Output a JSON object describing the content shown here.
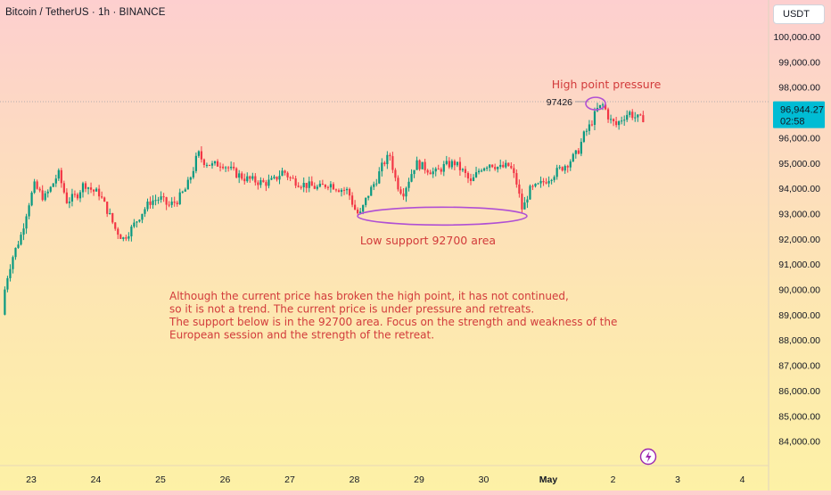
{
  "header": {
    "title": "Bitcoin / TetherUS · 1h · BINANCE"
  },
  "currency_button": {
    "label": "USDT"
  },
  "chart_data": {
    "type": "candlestick",
    "title": "Bitcoin / TetherUS · 1h · BINANCE",
    "x_ticks": [
      "23",
      "24",
      "25",
      "26",
      "27",
      "28",
      "29",
      "30",
      "May",
      "2",
      "3",
      "4"
    ],
    "y_ticks": [
      "100,000.00",
      "99,000.00",
      "98,000.00",
      "97,000.00",
      "96,000.00",
      "95,000.00",
      "94,000.00",
      "93,000.00",
      "92,000.00",
      "91,000.00",
      "90,000.00",
      "89,000.00",
      "88,000.00",
      "87,000.00",
      "86,000.00",
      "85,000.00",
      "84,000.00"
    ],
    "ylim": [
      83300,
      100800
    ],
    "current_price": {
      "value": "96,944.27",
      "countdown": "02:58"
    },
    "recent_high_label": "97426",
    "price_path": [
      [
        22.55,
        89000
      ],
      [
        22.6,
        90200
      ],
      [
        22.7,
        91200
      ],
      [
        22.85,
        92200
      ],
      [
        22.95,
        93300
      ],
      [
        23.05,
        94100
      ],
      [
        23.2,
        93600
      ],
      [
        23.3,
        94000
      ],
      [
        23.42,
        94600
      ],
      [
        23.55,
        93500
      ],
      [
        23.7,
        93700
      ],
      [
        23.82,
        94200
      ],
      [
        23.95,
        93900
      ],
      [
        24.05,
        93800
      ],
      [
        24.2,
        93000
      ],
      [
        24.3,
        92400
      ],
      [
        24.42,
        92000
      ],
      [
        24.55,
        92400
      ],
      [
        24.7,
        93000
      ],
      [
        24.85,
        93500
      ],
      [
        25.0,
        93600
      ],
      [
        25.12,
        93300
      ],
      [
        25.25,
        93500
      ],
      [
        25.4,
        94000
      ],
      [
        25.5,
        94700
      ],
      [
        25.58,
        95400
      ],
      [
        25.65,
        95100
      ],
      [
        25.8,
        94900
      ],
      [
        25.95,
        95000
      ],
      [
        26.05,
        94800
      ],
      [
        26.15,
        94600
      ],
      [
        26.3,
        94400
      ],
      [
        26.45,
        94300
      ],
      [
        26.6,
        94200
      ],
      [
        26.75,
        94300
      ],
      [
        26.9,
        94700
      ],
      [
        27.0,
        94400
      ],
      [
        27.15,
        94200
      ],
      [
        27.3,
        94100
      ],
      [
        27.45,
        94000
      ],
      [
        27.6,
        94200
      ],
      [
        27.75,
        94000
      ],
      [
        27.9,
        93900
      ],
      [
        28.0,
        93200
      ],
      [
        28.08,
        92900
      ],
      [
        28.2,
        93700
      ],
      [
        28.35,
        94400
      ],
      [
        28.45,
        95000
      ],
      [
        28.55,
        95300
      ],
      [
        28.65,
        94200
      ],
      [
        28.75,
        93800
      ],
      [
        28.85,
        94400
      ],
      [
        28.95,
        95000
      ],
      [
        29.1,
        94800
      ],
      [
        29.25,
        94600
      ],
      [
        29.4,
        94900
      ],
      [
        29.55,
        95000
      ],
      [
        29.7,
        94600
      ],
      [
        29.8,
        94200
      ],
      [
        29.95,
        94800
      ],
      [
        30.1,
        95000
      ],
      [
        30.25,
        94800
      ],
      [
        30.4,
        94900
      ],
      [
        30.5,
        94300
      ],
      [
        30.6,
        93100
      ],
      [
        30.7,
        93900
      ],
      [
        30.85,
        94100
      ],
      [
        31.0,
        94400
      ],
      [
        31.15,
        94700
      ],
      [
        31.3,
        95000
      ],
      [
        31.45,
        95400
      ],
      [
        31.55,
        96100
      ],
      [
        31.65,
        96500
      ],
      [
        31.75,
        97100
      ],
      [
        31.85,
        97300
      ],
      [
        31.95,
        96700
      ],
      [
        32.05,
        96500
      ],
      [
        32.15,
        96800
      ],
      [
        32.25,
        97000
      ],
      [
        32.35,
        96800
      ],
      [
        32.45,
        96700
      ],
      [
        32.5,
        96950
      ]
    ],
    "annotations": {
      "high": "High point pressure",
      "low": "Low support 92700 area",
      "note": [
        "Although the current price has broken the high point, it has not continued,",
        " so it is not a trend. The current price is under pressure and retreats.",
        "The support below is in the 92700 area. Focus on the strength and weakness of the",
        "European session and the strength of the retreat."
      ]
    },
    "colors": {
      "up": "#089981",
      "down": "#f23645",
      "ellipse": "#b04fd4",
      "annotation": "#d23b3b",
      "price_label": "#00bcd4"
    }
  }
}
